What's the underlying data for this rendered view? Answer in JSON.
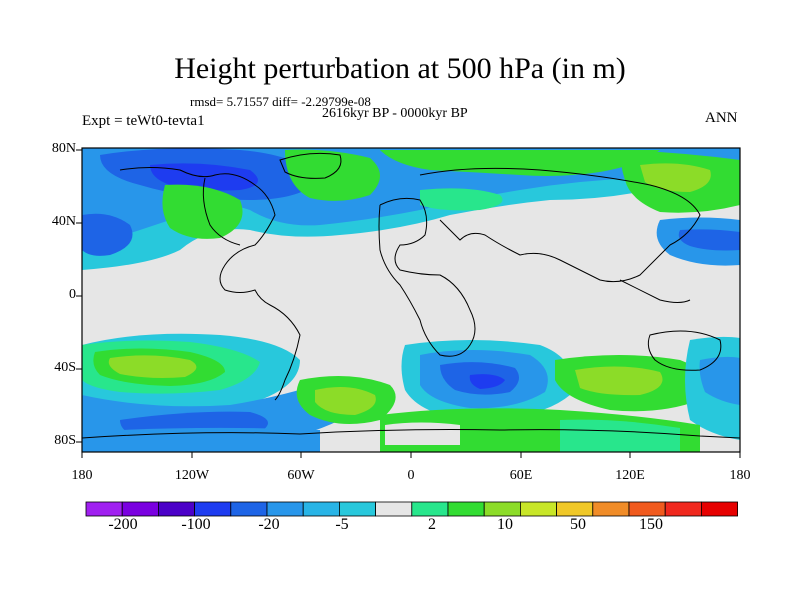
{
  "title": "Height perturbation at 500 hPa (in m)",
  "stats": "rmsd= 5.71557 diff= -2.29799e-08",
  "period": "2616kyr BP - 0000kyr BP",
  "experiment": "Expt = teWt0-tevta1",
  "season": "ANN",
  "lat_labels": [
    "80N",
    "40N",
    "0",
    "40S",
    "80S"
  ],
  "lon_labels": [
    "180",
    "120W",
    "60W",
    "0",
    "60E",
    "120E",
    "180"
  ],
  "colorbar": {
    "colors": [
      "#a020f0",
      "#7a00e0",
      "#4b00c8",
      "#1e3cf0",
      "#1e64e6",
      "#2896ea",
      "#28b4e6",
      "#28c8dc",
      "#e6e6e6",
      "#28e68c",
      "#32dc32",
      "#8cdc28",
      "#c8e628",
      "#f0c828",
      "#f08c28",
      "#f05a1e",
      "#f0281e",
      "#e60000"
    ],
    "labels": [
      "-200",
      "-100",
      "-20",
      "-5",
      "2",
      "10",
      "50",
      "150"
    ]
  }
}
